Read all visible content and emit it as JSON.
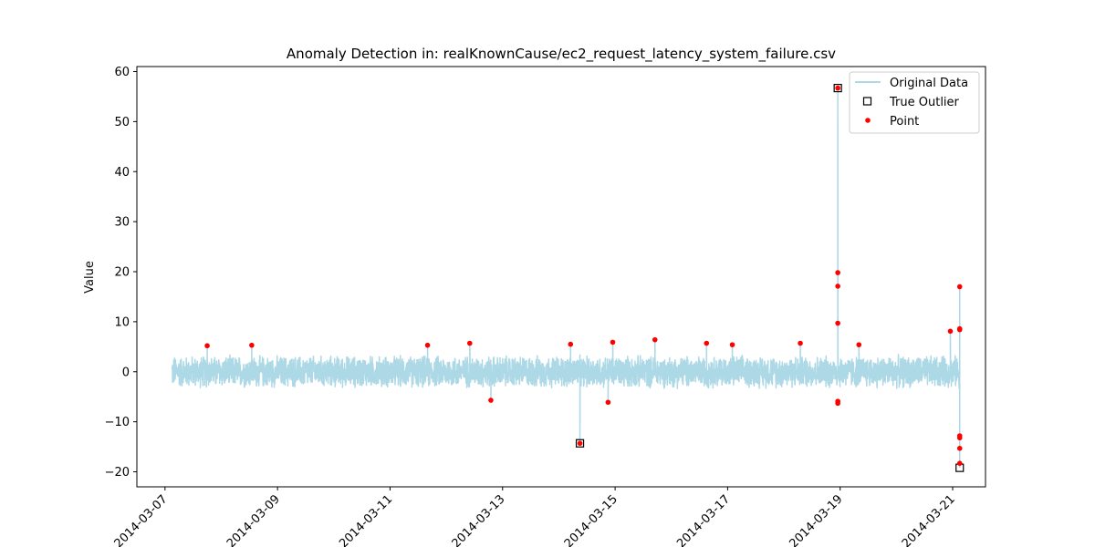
{
  "chart_data": {
    "type": "line",
    "title": "Anomaly Detection in: realKnownCause/ec2_request_latency_system_failure.csv",
    "xlabel": "",
    "ylabel": "Value",
    "xlim": [
      "2014-03-06T12:00",
      "2014-03-21T14:00"
    ],
    "ylim": [
      -23,
      61
    ],
    "x_ticks": [
      "2014-03-07",
      "2014-03-09",
      "2014-03-11",
      "2014-03-13",
      "2014-03-15",
      "2014-03-17",
      "2014-03-19",
      "2014-03-21"
    ],
    "y_ticks": [
      -20,
      -10,
      0,
      10,
      20,
      30,
      40,
      50,
      60
    ],
    "legend_position": "top-right",
    "grid": false,
    "colors": {
      "original": "#add8e6",
      "point": "#ff0000",
      "true_outlier": "#000000"
    },
    "series": [
      {
        "name": "Original Data",
        "kind": "line",
        "start": "2014-03-07T03:00",
        "end": "2014-03-21T03:00",
        "noise_amplitude": 3.5,
        "spikes": [
          {
            "x": "2014-03-07T18:00",
            "y": 5.2
          },
          {
            "x": "2014-03-08T13:00",
            "y": 5.3
          },
          {
            "x": "2014-03-11T16:00",
            "y": 5.3
          },
          {
            "x": "2014-03-12T10:00",
            "y": 5.7
          },
          {
            "x": "2014-03-12T19:00",
            "y": -5.7
          },
          {
            "x": "2014-03-14T05:00",
            "y": 5.5
          },
          {
            "x": "2014-03-14T09:00",
            "y": -14.3
          },
          {
            "x": "2014-03-14T21:00",
            "y": -6.1
          },
          {
            "x": "2014-03-14T23:00",
            "y": 5.9
          },
          {
            "x": "2014-03-15T17:00",
            "y": 6.4
          },
          {
            "x": "2014-03-16T15:00",
            "y": 5.7
          },
          {
            "x": "2014-03-17T02:00",
            "y": 5.4
          },
          {
            "x": "2014-03-18T07:00",
            "y": 5.7
          },
          {
            "x": "2014-03-18T23:00",
            "y": 56.7
          },
          {
            "x": "2014-03-19T08:00",
            "y": 5.4
          },
          {
            "x": "2014-03-20T23:00",
            "y": 8.1
          },
          {
            "x": "2014-03-21T03:00",
            "y": 17.0
          },
          {
            "x": "2014-03-21T03:00",
            "y": -19.2
          }
        ]
      },
      {
        "name": "True Outlier",
        "kind": "marker-square",
        "points": [
          {
            "x": "2014-03-18T23:00",
            "y": 56.7
          },
          {
            "x": "2014-03-14T09:00",
            "y": -14.3
          },
          {
            "x": "2014-03-21T03:00",
            "y": -19.2
          }
        ]
      },
      {
        "name": "Point",
        "kind": "marker-dot",
        "points": [
          {
            "x": "2014-03-07T18:00",
            "y": 5.2
          },
          {
            "x": "2014-03-08T13:00",
            "y": 5.3
          },
          {
            "x": "2014-03-11T16:00",
            "y": 5.3
          },
          {
            "x": "2014-03-12T10:00",
            "y": 5.7
          },
          {
            "x": "2014-03-12T19:00",
            "y": -5.7
          },
          {
            "x": "2014-03-14T05:00",
            "y": 5.5
          },
          {
            "x": "2014-03-14T09:00",
            "y": -14.3
          },
          {
            "x": "2014-03-14T21:00",
            "y": -6.1
          },
          {
            "x": "2014-03-14T23:00",
            "y": 5.9
          },
          {
            "x": "2014-03-15T17:00",
            "y": 6.4
          },
          {
            "x": "2014-03-16T15:00",
            "y": 5.7
          },
          {
            "x": "2014-03-17T02:00",
            "y": 5.4
          },
          {
            "x": "2014-03-18T07:00",
            "y": 5.7
          },
          {
            "x": "2014-03-18T23:00",
            "y": 56.7
          },
          {
            "x": "2014-03-18T23:00",
            "y": 19.8
          },
          {
            "x": "2014-03-18T23:00",
            "y": 17.1
          },
          {
            "x": "2014-03-18T23:00",
            "y": 9.7
          },
          {
            "x": "2014-03-18T23:00",
            "y": -5.9
          },
          {
            "x": "2014-03-18T23:00",
            "y": -6.3
          },
          {
            "x": "2014-03-19T08:00",
            "y": 5.4
          },
          {
            "x": "2014-03-20T23:00",
            "y": 8.1
          },
          {
            "x": "2014-03-21T03:00",
            "y": 17.0
          },
          {
            "x": "2014-03-21T03:00",
            "y": 8.6
          },
          {
            "x": "2014-03-21T03:00",
            "y": 8.4
          },
          {
            "x": "2014-03-21T03:00",
            "y": -12.8
          },
          {
            "x": "2014-03-21T03:00",
            "y": -13.2
          },
          {
            "x": "2014-03-21T03:00",
            "y": -15.3
          },
          {
            "x": "2014-03-21T03:00",
            "y": -18.3
          }
        ]
      }
    ]
  }
}
